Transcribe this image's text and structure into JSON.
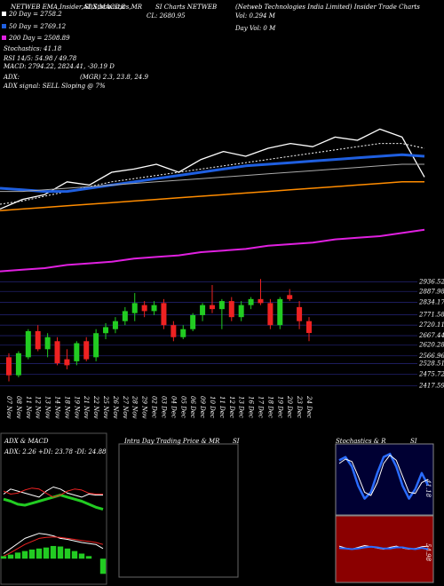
{
  "chart_data": [
    {
      "type": "line",
      "annotations": [
        "NETWEB EMA,Insider,ADX,MACD,8",
        "SI,Stochastics,MR",
        "SI Charts NETWEB",
        "CL: 2680.95",
        "(Netweb Technologies India Limited) Insider Trade Charts",
        "Vol: 0.294 M",
        "Day Vol: 0 M",
        "20 Day = 2758.2",
        "50 Day = 2769.12",
        "200 Day = 2508.89",
        "Stochastics: 41.18",
        "RSI 14/5: 54.98 / 49.78",
        "MACD: 2794.22, 2824.41, -30.19 D",
        "ADX:",
        "(MGR) 2.3, 23.8, 24.9",
        "ADX signal: SELL Sloping @ 7%"
      ],
      "ylim": [
        0,
        100
      ],
      "series": [
        {
          "color": "#ffffff",
          "values": [
            47,
            53,
            56,
            64,
            62,
            70,
            72,
            75,
            70,
            78,
            83,
            80,
            85,
            88,
            86,
            92,
            90,
            97,
            92,
            67
          ]
        },
        {
          "color": "#ffffff",
          "style": "dotted",
          "values": [
            50,
            52,
            55,
            58,
            61,
            64,
            66,
            68,
            70,
            72,
            74,
            76,
            78,
            80,
            82,
            84,
            86,
            88,
            88,
            85
          ]
        },
        {
          "color": "#1f5fe0",
          "values": [
            60,
            59,
            58,
            58,
            60,
            62,
            64,
            66,
            68,
            70,
            72,
            74,
            75,
            76,
            77,
            78,
            79,
            80,
            81,
            80
          ]
        },
        {
          "color": "#aaaaaa",
          "values": [
            58,
            58,
            59,
            60,
            61,
            62,
            63,
            64,
            65,
            66,
            67,
            68,
            69,
            70,
            71,
            72,
            73,
            74,
            75,
            75
          ]
        },
        {
          "color": "#ff8c00",
          "values": [
            46,
            47,
            48,
            49,
            50,
            51,
            52,
            53,
            54,
            55,
            56,
            57,
            58,
            59,
            60,
            61,
            62,
            63,
            64,
            64
          ]
        },
        {
          "color": "#e020e0",
          "values": [
            8,
            9,
            10,
            12,
            13,
            14,
            16,
            17,
            18,
            20,
            21,
            22,
            24,
            25,
            26,
            28,
            29,
            30,
            32,
            34
          ]
        }
      ]
    },
    {
      "type": "candlestick",
      "categories": [
        "07 Nov",
        "08 Nov",
        "11 Nov",
        "12 Nov",
        "13 Nov",
        "14 Nov",
        "18 Nov",
        "19 Nov",
        "21 Nov",
        "22 Nov",
        "25 Nov",
        "26 Nov",
        "27 Nov",
        "28 Nov",
        "29 Nov",
        "02 Dec",
        "03 Dec",
        "04 Dec",
        "05 Dec",
        "06 Dec",
        "09 Dec",
        "10 Dec",
        "11 Dec",
        "12 Dec",
        "13 Dec",
        "16 Dec",
        "17 Dec",
        "18 Dec",
        "19 Dec",
        "20 Dec",
        "23 Dec",
        "24 Dec"
      ],
      "open": [
        2560,
        2470,
        2560,
        2690,
        2600,
        2640,
        2550,
        2540,
        2640,
        2560,
        2680,
        2700,
        2740,
        2780,
        2820,
        2790,
        2830,
        2720,
        2660,
        2700,
        2770,
        2820,
        2800,
        2840,
        2760,
        2820,
        2850,
        2830,
        2720,
        2870,
        2810,
        2740
      ],
      "high": [
        2580,
        2590,
        2700,
        2720,
        2680,
        2660,
        2600,
        2640,
        2660,
        2700,
        2730,
        2760,
        2810,
        2880,
        2840,
        2840,
        2850,
        2740,
        2720,
        2780,
        2830,
        2920,
        2850,
        2860,
        2840,
        2860,
        2950,
        2850,
        2860,
        2900,
        2840,
        2760
      ],
      "low": [
        2440,
        2460,
        2550,
        2590,
        2560,
        2520,
        2500,
        2520,
        2540,
        2540,
        2650,
        2680,
        2720,
        2740,
        2760,
        2770,
        2700,
        2640,
        2650,
        2690,
        2740,
        2780,
        2700,
        2740,
        2740,
        2800,
        2820,
        2700,
        2700,
        2840,
        2700,
        2640
      ],
      "close": [
        2470,
        2580,
        2690,
        2600,
        2660,
        2530,
        2520,
        2630,
        2550,
        2680,
        2710,
        2740,
        2790,
        2830,
        2790,
        2820,
        2720,
        2660,
        2700,
        2770,
        2820,
        2800,
        2840,
        2760,
        2820,
        2850,
        2830,
        2720,
        2850,
        2850,
        2740,
        2680.95
      ],
      "up_color": "#22cc22",
      "down_color": "#ee2222",
      "ylim": [
        2380,
        2960
      ],
      "yticks": [
        2936.52,
        2887.98,
        2834.17,
        2771.58,
        2720.11,
        2667.44,
        2620.28,
        2566.96,
        2528.51,
        2475.72,
        2417.59
      ]
    },
    {
      "type": "line",
      "title": "ADX & MACD",
      "subtitle": "ADX: 2.26 +DI: 23.78 -DI: 24.88",
      "ylim": [
        0,
        50
      ],
      "series": [
        {
          "color": "#22cc22",
          "values": [
            20,
            18,
            15,
            14,
            16,
            18,
            20,
            22,
            24,
            22,
            20,
            18,
            15,
            12,
            10
          ]
        },
        {
          "color": "#ffffff",
          "values": [
            25,
            30,
            28,
            26,
            24,
            22,
            28,
            32,
            30,
            26,
            24,
            22,
            25,
            24,
            24
          ]
        },
        {
          "color": "#ee2222",
          "values": [
            28,
            25,
            26,
            29,
            31,
            30,
            26,
            22,
            24,
            28,
            30,
            29,
            26,
            25,
            25
          ]
        }
      ]
    },
    {
      "type": "macd",
      "ylim": [
        -40,
        60
      ],
      "color": "#22cc22",
      "values": [
        5,
        8,
        12,
        15,
        18,
        20,
        22,
        25,
        24,
        20,
        15,
        10,
        5,
        0,
        -30
      ],
      "series": [
        {
          "color": "#ffffff",
          "values": [
            10,
            20,
            30,
            40,
            45,
            50,
            48,
            45,
            40,
            38,
            35,
            32,
            30,
            28,
            20
          ]
        },
        {
          "color": "#ee2222",
          "values": [
            5,
            12,
            20,
            28,
            34,
            40,
            42,
            43,
            42,
            40,
            38,
            36,
            34,
            32,
            28
          ]
        }
      ]
    },
    {
      "type": "line",
      "title": "Stochastics & R",
      "subtitle": "SI",
      "annotations": [
        "41.18"
      ],
      "ylim": [
        0,
        100
      ],
      "series": [
        {
          "color": "#2a6cff",
          "values": [
            80,
            85,
            70,
            40,
            20,
            30,
            60,
            85,
            90,
            70,
            40,
            20,
            35,
            60,
            41
          ]
        },
        {
          "color": "#ffffff",
          "values": [
            75,
            82,
            78,
            55,
            30,
            25,
            45,
            75,
            88,
            80,
            55,
            30,
            28,
            45,
            50
          ]
        }
      ]
    },
    {
      "type": "line",
      "annotations": [
        "54.98"
      ],
      "ylim": [
        0,
        100
      ],
      "series": [
        {
          "color": "#ffffff",
          "values": [
            55,
            52,
            50,
            53,
            56,
            54,
            52,
            50,
            53,
            55,
            52,
            50,
            51,
            54,
            55
          ]
        },
        {
          "color": "#2a6cff",
          "values": [
            52,
            51,
            50,
            51,
            53,
            54,
            53,
            51,
            51,
            53,
            53,
            51,
            50,
            52,
            50
          ]
        }
      ]
    },
    {
      "type": "intraday",
      "title": "Intra Day Trading Price  & MR",
      "subtitle": "SI"
    }
  ]
}
